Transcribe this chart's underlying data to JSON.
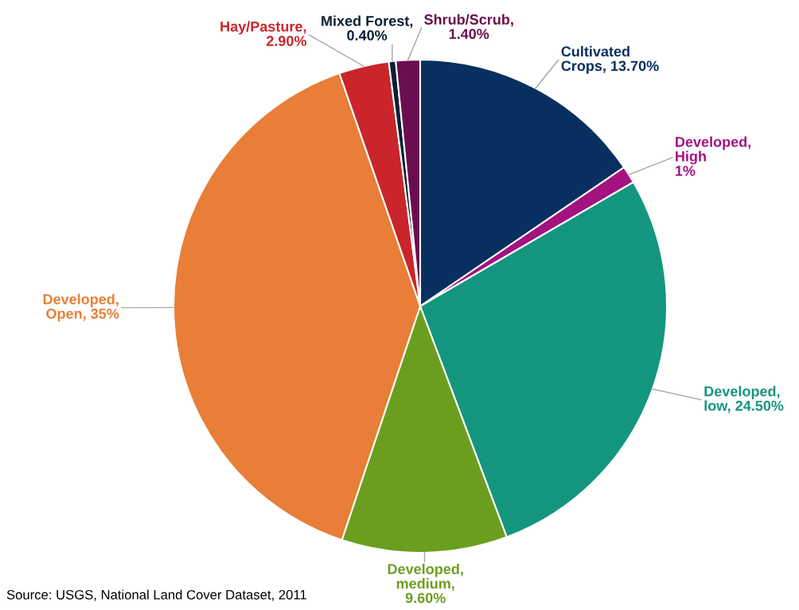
{
  "chart_data": {
    "type": "pie",
    "categories": [
      "Cultivated\nCrops, 13.70%",
      "Developed,\nHigh\n1%",
      "Developed,\nlow, 24.50%",
      "Developed,\nmedium,\n9.60%",
      "Developed,\nOpen, 35%",
      "Hay/Pasture,\n2.90%",
      "Mixed Forest,\n0.40%",
      "Shrub/Scrub,\n1.40%"
    ],
    "values": [
      13.7,
      1,
      24.5,
      9.6,
      35,
      2.9,
      0.4,
      1.4
    ],
    "colors": [
      "#072f5f",
      "#a3127f",
      "#14967e",
      "#6b9e1f",
      "#e87e37",
      "#c9252b",
      "#0a2035",
      "#6b0e4f"
    ],
    "annotations": [
      "Source: USGS, National Land Cover Dataset, 2011"
    ],
    "legend": false
  }
}
